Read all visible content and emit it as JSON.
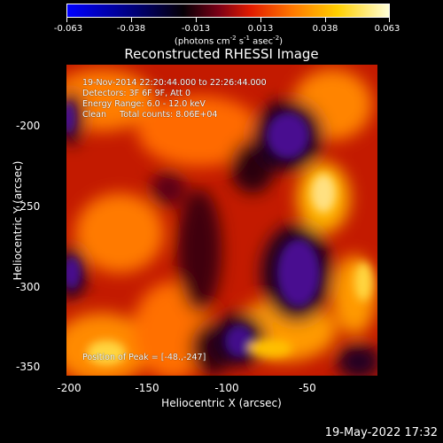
{
  "colorbar": {
    "tick_labels": [
      "-0.063",
      "-0.038",
      "-0.013",
      "0.013",
      "0.038",
      "0.063"
    ],
    "units_prefix": "(photons cm",
    "units_exp1": "-2",
    "units_mid": " s",
    "units_exp2": "-1",
    "units_mid2": " asec",
    "units_exp3": "-2",
    "units_suffix": ")"
  },
  "title": "Reconstructed RHESSI Image",
  "info": {
    "time_range": "19-Nov-2014 22:20:44.000 to 22:26:44.000",
    "detectors": "Detectors: 3F 6F 9F, Att 0",
    "energy": "Energy Range: 6.0 - 12.0 keV",
    "clean": "Clean     Total counts: 8.06E+04",
    "peak": "Position of Peak = [-48.,-247]"
  },
  "axes": {
    "x_title": "Heliocentric X (arcsec)",
    "y_title": "Heliocentric Y (arcsec)",
    "x_ticks": [
      "-200",
      "-150",
      "-100",
      "-50"
    ],
    "y_ticks": [
      "-200",
      "-250",
      "-300",
      "-350"
    ]
  },
  "timestamp": "19-May-2022 17:32",
  "colors": {
    "background": "#000000",
    "foreground": "#ffffff"
  }
}
